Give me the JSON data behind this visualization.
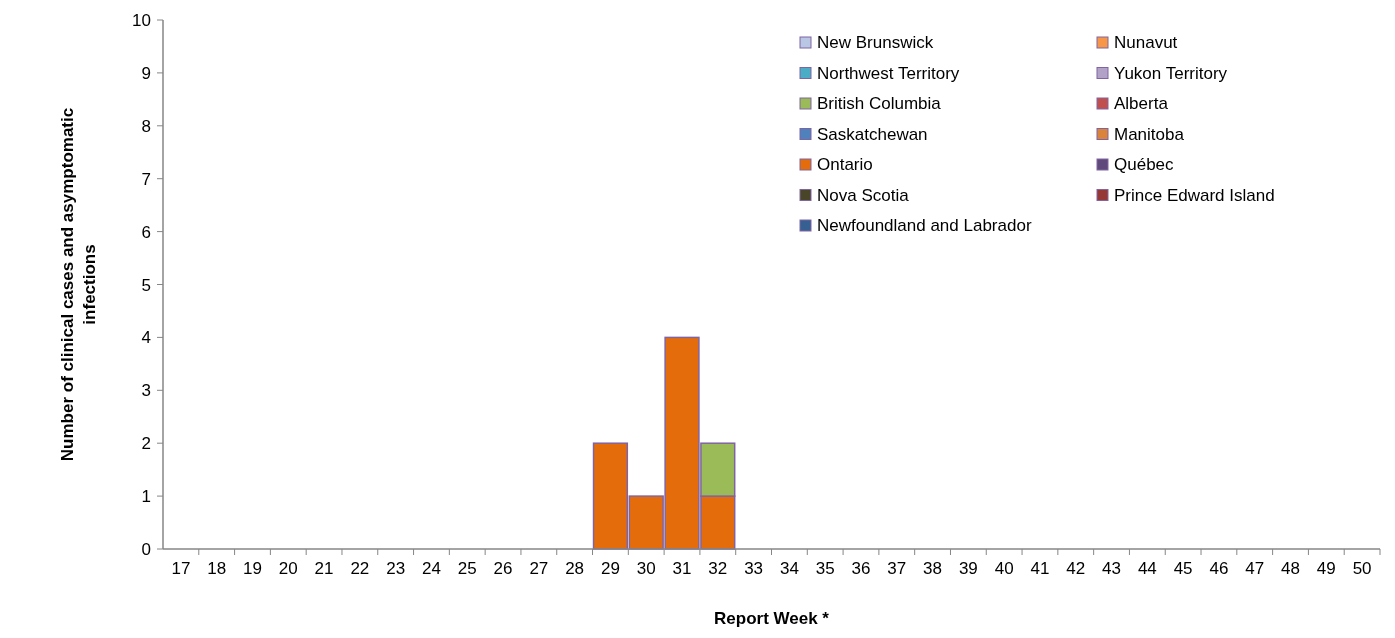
{
  "chart_data": {
    "type": "bar",
    "stacked": true,
    "xlabel": "Report Week *",
    "ylabel": "Number of clinical cases and asymptomatic infections",
    "categories": [
      "17",
      "18",
      "19",
      "20",
      "21",
      "22",
      "23",
      "24",
      "25",
      "26",
      "27",
      "28",
      "29",
      "30",
      "31",
      "32",
      "33",
      "34",
      "35",
      "36",
      "37",
      "38",
      "39",
      "40",
      "41",
      "42",
      "43",
      "44",
      "45",
      "46",
      "47",
      "48",
      "49",
      "50"
    ],
    "ylim": [
      0,
      10
    ],
    "yticks": [
      0,
      1,
      2,
      3,
      4,
      5,
      6,
      7,
      8,
      9,
      10
    ],
    "grid": false,
    "legend": "top right",
    "series": [
      {
        "name": "Newfoundland and Labrador",
        "color": "#376092",
        "values": [
          0,
          0,
          0,
          0,
          0,
          0,
          0,
          0,
          0,
          0,
          0,
          0,
          0,
          0,
          0,
          0,
          0,
          0,
          0,
          0,
          0,
          0,
          0,
          0,
          0,
          0,
          0,
          0,
          0,
          0,
          0,
          0,
          0,
          0
        ]
      },
      {
        "name": "Prince Edward Island",
        "color": "#953735",
        "values": [
          0,
          0,
          0,
          0,
          0,
          0,
          0,
          0,
          0,
          0,
          0,
          0,
          0,
          0,
          0,
          0,
          0,
          0,
          0,
          0,
          0,
          0,
          0,
          0,
          0,
          0,
          0,
          0,
          0,
          0,
          0,
          0,
          0,
          0
        ]
      },
      {
        "name": "Nova Scotia",
        "color": "#494529",
        "values": [
          0,
          0,
          0,
          0,
          0,
          0,
          0,
          0,
          0,
          0,
          0,
          0,
          0,
          0,
          0,
          0,
          0,
          0,
          0,
          0,
          0,
          0,
          0,
          0,
          0,
          0,
          0,
          0,
          0,
          0,
          0,
          0,
          0,
          0
        ]
      },
      {
        "name": "Québec",
        "color": "#604a7b",
        "values": [
          0,
          0,
          0,
          0,
          0,
          0,
          0,
          0,
          0,
          0,
          0,
          0,
          0,
          0,
          0,
          0,
          0,
          0,
          0,
          0,
          0,
          0,
          0,
          0,
          0,
          0,
          0,
          0,
          0,
          0,
          0,
          0,
          0,
          0
        ]
      },
      {
        "name": "Ontario",
        "color": "#e46c0a",
        "values": [
          0,
          0,
          0,
          0,
          0,
          0,
          0,
          0,
          0,
          0,
          0,
          0,
          2,
          1,
          4,
          1,
          0,
          0,
          0,
          0,
          0,
          0,
          0,
          0,
          0,
          0,
          0,
          0,
          0,
          0,
          0,
          0,
          0,
          0
        ]
      },
      {
        "name": "Manitoba",
        "color": "#d9843a",
        "values": [
          0,
          0,
          0,
          0,
          0,
          0,
          0,
          0,
          0,
          0,
          0,
          0,
          0,
          0,
          0,
          0,
          0,
          0,
          0,
          0,
          0,
          0,
          0,
          0,
          0,
          0,
          0,
          0,
          0,
          0,
          0,
          0,
          0,
          0
        ]
      },
      {
        "name": "Saskatchewan",
        "color": "#4f81bd",
        "values": [
          0,
          0,
          0,
          0,
          0,
          0,
          0,
          0,
          0,
          0,
          0,
          0,
          0,
          0,
          0,
          0,
          0,
          0,
          0,
          0,
          0,
          0,
          0,
          0,
          0,
          0,
          0,
          0,
          0,
          0,
          0,
          0,
          0,
          0
        ]
      },
      {
        "name": "Alberta",
        "color": "#c0504d",
        "values": [
          0,
          0,
          0,
          0,
          0,
          0,
          0,
          0,
          0,
          0,
          0,
          0,
          0,
          0,
          0,
          0,
          0,
          0,
          0,
          0,
          0,
          0,
          0,
          0,
          0,
          0,
          0,
          0,
          0,
          0,
          0,
          0,
          0,
          0
        ]
      },
      {
        "name": "British Columbia",
        "color": "#9bbb59",
        "values": [
          0,
          0,
          0,
          0,
          0,
          0,
          0,
          0,
          0,
          0,
          0,
          0,
          0,
          0,
          0,
          1,
          0,
          0,
          0,
          0,
          0,
          0,
          0,
          0,
          0,
          0,
          0,
          0,
          0,
          0,
          0,
          0,
          0,
          0
        ]
      },
      {
        "name": "Yukon Territory",
        "color": "#b3a2c7",
        "values": [
          0,
          0,
          0,
          0,
          0,
          0,
          0,
          0,
          0,
          0,
          0,
          0,
          0,
          0,
          0,
          0,
          0,
          0,
          0,
          0,
          0,
          0,
          0,
          0,
          0,
          0,
          0,
          0,
          0,
          0,
          0,
          0,
          0,
          0
        ]
      },
      {
        "name": "Northwest Territory",
        "color": "#4bacc6",
        "values": [
          0,
          0,
          0,
          0,
          0,
          0,
          0,
          0,
          0,
          0,
          0,
          0,
          0,
          0,
          0,
          0,
          0,
          0,
          0,
          0,
          0,
          0,
          0,
          0,
          0,
          0,
          0,
          0,
          0,
          0,
          0,
          0,
          0,
          0
        ]
      },
      {
        "name": "Nunavut",
        "color": "#f79646",
        "values": [
          0,
          0,
          0,
          0,
          0,
          0,
          0,
          0,
          0,
          0,
          0,
          0,
          0,
          0,
          0,
          0,
          0,
          0,
          0,
          0,
          0,
          0,
          0,
          0,
          0,
          0,
          0,
          0,
          0,
          0,
          0,
          0,
          0,
          0
        ]
      },
      {
        "name": "New Brunswick",
        "color": "#b9c7e4",
        "values": [
          0,
          0,
          0,
          0,
          0,
          0,
          0,
          0,
          0,
          0,
          0,
          0,
          0,
          0,
          0,
          0,
          0,
          0,
          0,
          0,
          0,
          0,
          0,
          0,
          0,
          0,
          0,
          0,
          0,
          0,
          0,
          0,
          0,
          0
        ]
      }
    ]
  }
}
